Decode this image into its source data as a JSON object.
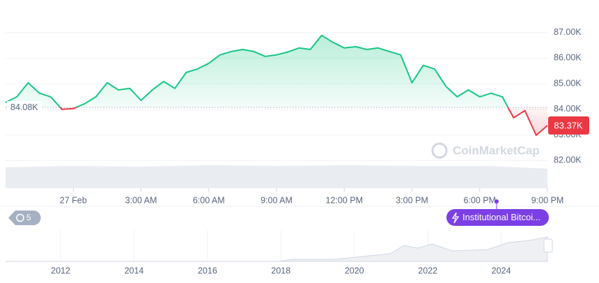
{
  "chart_data": {
    "type": "line",
    "x": [
      -3,
      -2.5,
      -2,
      -1.5,
      -1,
      -0.5,
      0,
      0.5,
      1,
      1.5,
      2,
      2.5,
      3,
      3.5,
      4,
      4.5,
      5,
      5.5,
      6,
      6.5,
      7,
      7.5,
      8,
      8.5,
      9,
      9.5,
      10,
      10.5,
      11,
      11.5,
      12,
      12.5,
      13,
      13.5,
      14,
      14.5,
      15,
      15.5,
      16,
      16.5,
      17,
      17.5,
      18,
      18.5,
      19,
      19.5,
      20,
      20.5,
      21
    ],
    "series": [
      {
        "values": [
          84270,
          84490,
          85040,
          84630,
          84490,
          84000,
          84030,
          84220,
          84490,
          85040,
          84760,
          84820,
          84350,
          84760,
          85090,
          84820,
          85440,
          85580,
          85800,
          86130,
          86260,
          86340,
          86260,
          86070,
          86130,
          86240,
          86400,
          86340,
          86890,
          86620,
          86400,
          86450,
          86340,
          86400,
          86260,
          86130,
          85040,
          85720,
          85580,
          84900,
          84490,
          84760,
          84490,
          84630,
          84490,
          83670,
          83950,
          82990,
          83370
        ]
      }
    ],
    "up_color": "#16c784",
    "down_color": "#ea3943",
    "baseline": {
      "value": 84080,
      "label": "84.08K"
    },
    "last_price": {
      "value": 83370,
      "label": "83.37K"
    },
    "xlim": [
      -3,
      21
    ],
    "xticks": [
      {
        "value": 0,
        "label": "27 Feb"
      },
      {
        "value": 3,
        "label": "3:00 AM"
      },
      {
        "value": 6,
        "label": "6:00 AM"
      },
      {
        "value": 9,
        "label": "9:00 AM"
      },
      {
        "value": 12,
        "label": "12:00 PM"
      },
      {
        "value": 15,
        "label": "3:00 PM"
      },
      {
        "value": 18,
        "label": "6:00 PM"
      },
      {
        "value": 21,
        "label": "9:00 PM"
      }
    ],
    "ylim": [
      81600,
      88000
    ],
    "yticks": [
      {
        "value": 82000,
        "label": "82.00K"
      },
      {
        "value": 83000,
        "label": "83.00K"
      },
      {
        "value": 84000,
        "label": "84.00K"
      },
      {
        "value": 85000,
        "label": "85.00K"
      },
      {
        "value": 86000,
        "label": "86.00K"
      },
      {
        "value": 87000,
        "label": "87.00K"
      }
    ],
    "grid": true,
    "watermark": "CoinMarketCap",
    "history_badge": "5",
    "annotation": "Institutional Bitcoi...",
    "navigator_xlim": [
      2010.5,
      2025.26
    ],
    "navigator_xticks": [
      2012,
      2014,
      2016,
      2018,
      2020,
      2022,
      2024
    ]
  }
}
